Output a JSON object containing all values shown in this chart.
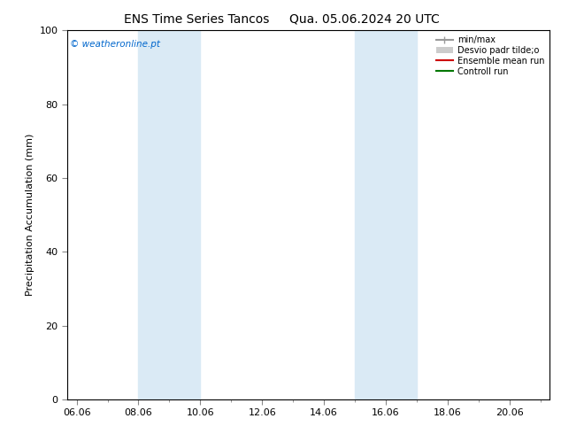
{
  "title_left": "ENS Time Series Tancos",
  "title_right": "Qua. 05.06.2024 20 UTC",
  "ylabel": "Precipitation Accumulation (mm)",
  "ylim": [
    0,
    100
  ],
  "yticks": [
    0,
    20,
    40,
    60,
    80,
    100
  ],
  "xtick_labels": [
    "06.06",
    "08.06",
    "10.06",
    "12.06",
    "14.06",
    "16.06",
    "18.06",
    "20.06"
  ],
  "xtick_positions": [
    0,
    2,
    4,
    6,
    8,
    10,
    12,
    14
  ],
  "xlim": [
    -0.3,
    15.3
  ],
  "shaded_regions": [
    {
      "x_start": 2.0,
      "x_end": 4.0
    },
    {
      "x_start": 9.0,
      "x_end": 11.0
    }
  ],
  "shaded_color": "#daeaf5",
  "watermark_text": "© weatheronline.pt",
  "watermark_color": "#0066cc",
  "legend_entries": [
    {
      "label": "min/max",
      "color": "#999999",
      "lw": 1.5
    },
    {
      "label": "Desvio padr tilde;o",
      "color": "#cccccc",
      "lw": 5
    },
    {
      "label": "Ensemble mean run",
      "color": "#cc0000",
      "lw": 1.5
    },
    {
      "label": "Controll run",
      "color": "#007700",
      "lw": 1.5
    }
  ],
  "background_color": "#ffffff",
  "plot_bg_color": "#ffffff",
  "title_fontsize": 10,
  "tick_fontsize": 8,
  "ylabel_fontsize": 8,
  "legend_fontsize": 7
}
